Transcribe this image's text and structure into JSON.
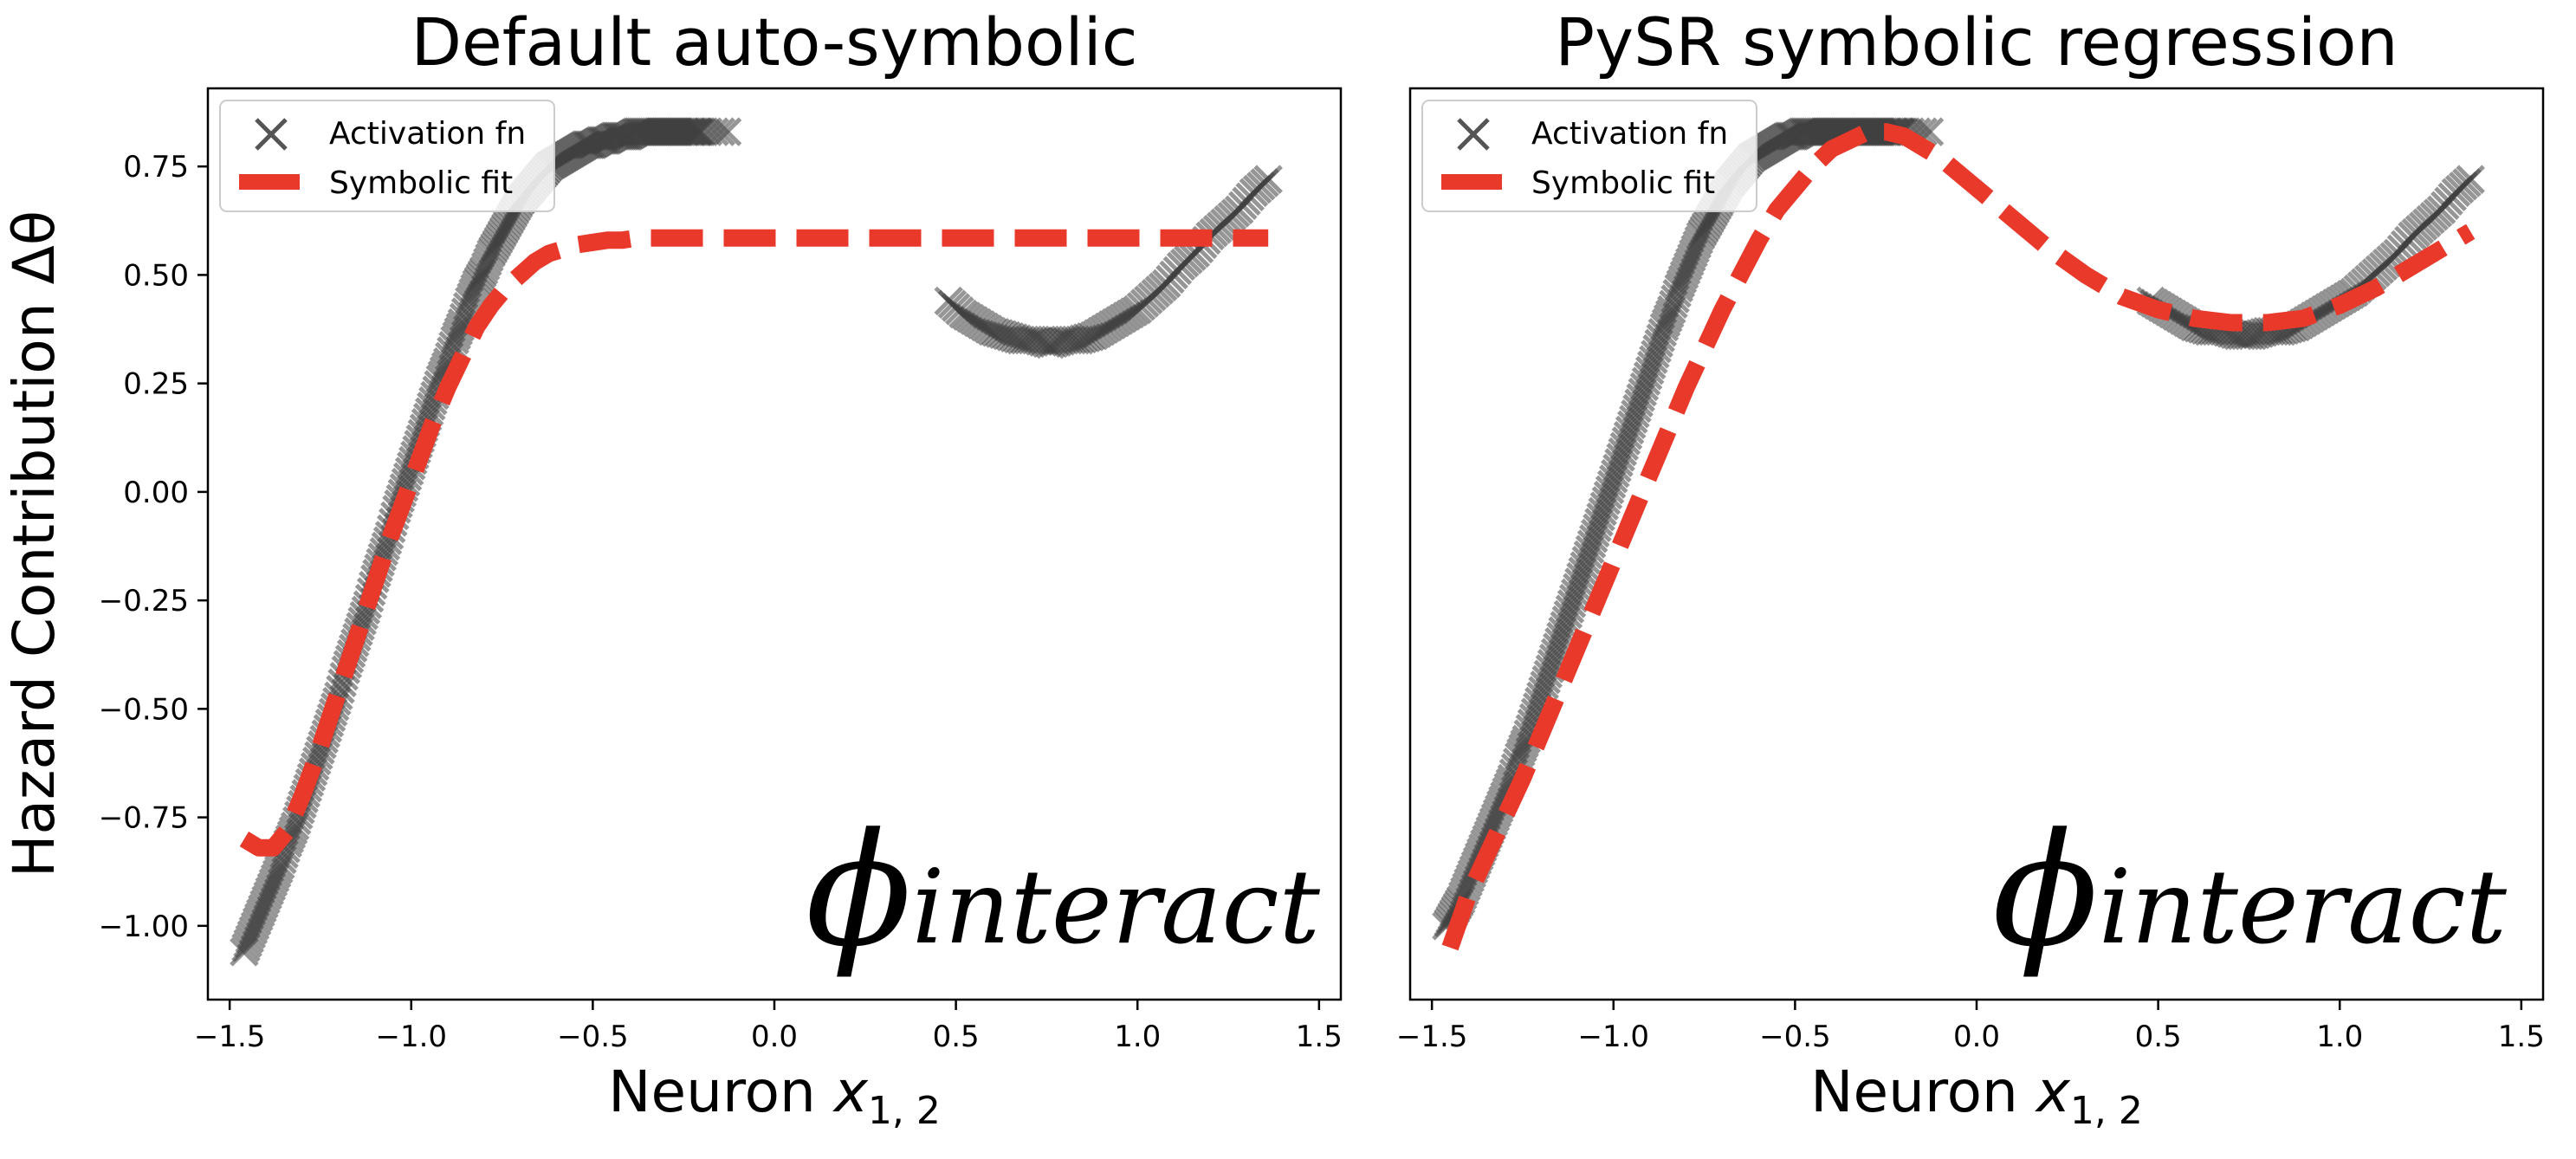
{
  "chart_data": [
    {
      "type": "line",
      "title": "Default auto-symbolic",
      "xlabel": "Neuron ",
      "xlabel_var": "x",
      "xlabel_sub": "1, 2",
      "ylabel": "Hazard Contribution Δθ",
      "xlim": [
        -1.56,
        1.56
      ],
      "ylim": [
        -1.17,
        0.93
      ],
      "xticks": [
        -1.5,
        -1.0,
        -0.5,
        0.0,
        0.5,
        1.0,
        1.5
      ],
      "xtick_labels": [
        "−1.5",
        "−1.0",
        "−0.5",
        "0.0",
        "0.5",
        "1.0",
        "1.5"
      ],
      "yticks": [
        -1.0,
        -0.75,
        -0.5,
        -0.25,
        0.0,
        0.25,
        0.5,
        0.75
      ],
      "ytick_labels": [
        "−1.00",
        "−0.75",
        "−0.50",
        "−0.25",
        "0.00",
        "0.25",
        "0.50",
        "0.75"
      ],
      "annotation_symbol": "ϕ",
      "annotation_sub": "interact",
      "legend": {
        "placement": "top-left",
        "entries": [
          "Activation fn",
          "Symbolic fit"
        ]
      },
      "series": [
        {
          "name": "Activation fn",
          "style": "marker-x",
          "color": "#404040",
          "segments": [
            {
              "x": [
                -1.46,
                -1.44,
                -1.42,
                -1.4,
                -1.38,
                -1.36,
                -1.34,
                -1.32,
                -1.3,
                -1.28,
                -1.26,
                -1.24,
                -1.22,
                -1.2,
                -1.18,
                -1.16,
                -1.14,
                -1.12,
                -1.1,
                -1.08,
                -1.06,
                -1.04,
                -1.02,
                -1.0,
                -0.98,
                -0.96,
                -0.94,
                -0.92,
                -0.9,
                -0.88,
                -0.86,
                -0.84,
                -0.82,
                -0.8,
                -0.78,
                -0.76,
                -0.74,
                -0.72,
                -0.7,
                -0.68,
                -0.66,
                -0.64,
                -0.62,
                -0.6,
                -0.58,
                -0.56,
                -0.54,
                -0.52,
                -0.5,
                -0.48,
                -0.46,
                -0.44,
                -0.42,
                -0.4,
                -0.38,
                -0.36,
                -0.34,
                -0.32,
                -0.3,
                -0.28,
                -0.26,
                -0.24,
                -0.22,
                -0.2,
                -0.13
              ],
              "y": [
                -1.06,
                -1.02,
                -0.98,
                -0.94,
                -0.9,
                -0.86,
                -0.81,
                -0.77,
                -0.72,
                -0.67,
                -0.62,
                -0.57,
                -0.52,
                -0.47,
                -0.41,
                -0.36,
                -0.31,
                -0.26,
                -0.2,
                -0.15,
                -0.1,
                -0.04,
                0.01,
                0.06,
                0.11,
                0.16,
                0.21,
                0.26,
                0.3,
                0.35,
                0.39,
                0.44,
                0.48,
                0.51,
                0.55,
                0.58,
                0.61,
                0.64,
                0.67,
                0.69,
                0.71,
                0.73,
                0.75,
                0.76,
                0.77,
                0.78,
                0.79,
                0.8,
                0.8,
                0.81,
                0.81,
                0.82,
                0.82,
                0.82,
                0.83,
                0.83,
                0.83,
                0.83,
                0.83,
                0.83,
                0.83,
                0.83,
                0.83,
                0.83,
                0.83
              ]
            },
            {
              "x": [
                0.48,
                0.52,
                0.56,
                0.6,
                0.64,
                0.68,
                0.72,
                0.76,
                0.8,
                0.84,
                0.88,
                0.92,
                0.96,
                1.0,
                1.04,
                1.08,
                1.12,
                1.16,
                1.2,
                1.24,
                1.28,
                1.32,
                1.36
              ],
              "y": [
                0.44,
                0.41,
                0.39,
                0.37,
                0.36,
                0.35,
                0.35,
                0.34,
                0.35,
                0.35,
                0.36,
                0.38,
                0.4,
                0.42,
                0.45,
                0.48,
                0.52,
                0.55,
                0.59,
                0.62,
                0.65,
                0.69,
                0.72
              ]
            }
          ]
        },
        {
          "name": "Symbolic fit",
          "style": "dashed",
          "color": "#e8392b",
          "segments": [
            {
              "x": [
                -1.46,
                -1.42,
                -1.38,
                -1.34,
                -1.3,
                -1.26,
                -1.22,
                -1.18,
                -1.14,
                -1.1,
                -1.06,
                -1.02,
                -0.98,
                -0.94,
                -0.9,
                -0.86,
                -0.82,
                -0.78,
                -0.74,
                -0.7,
                -0.66,
                -0.62,
                -0.58,
                -0.54,
                -0.5,
                -0.46,
                -0.42,
                -0.38,
                -0.34,
                -0.3,
                -0.2,
                -0.1,
                0.0,
                0.2,
                0.4,
                0.6,
                0.8,
                1.0,
                1.2,
                1.36
              ],
              "y": [
                -0.8,
                -0.82,
                -0.82,
                -0.78,
                -0.7,
                -0.61,
                -0.51,
                -0.41,
                -0.31,
                -0.21,
                -0.11,
                -0.02,
                0.07,
                0.16,
                0.24,
                0.31,
                0.38,
                0.43,
                0.47,
                0.5,
                0.53,
                0.55,
                0.56,
                0.57,
                0.575,
                0.58,
                0.58,
                0.585,
                0.585,
                0.585,
                0.585,
                0.585,
                0.585,
                0.585,
                0.585,
                0.585,
                0.585,
                0.585,
                0.585,
                0.585
              ]
            }
          ]
        }
      ]
    },
    {
      "type": "line",
      "title": "PySR symbolic regression",
      "xlabel": "Neuron ",
      "xlabel_var": "x",
      "xlabel_sub": "1, 2",
      "ylabel": "",
      "xlim": [
        -1.56,
        1.56
      ],
      "ylim": [
        -1.17,
        0.93
      ],
      "xticks": [
        -1.5,
        -1.0,
        -0.5,
        0.0,
        0.5,
        1.0,
        1.5
      ],
      "xtick_labels": [
        "−1.5",
        "−1.0",
        "−0.5",
        "0.0",
        "0.5",
        "1.0",
        "1.5"
      ],
      "yticks": [],
      "ytick_labels": [],
      "annotation_symbol": "ϕ",
      "annotation_sub": "interact",
      "legend": {
        "placement": "top-left",
        "entries": [
          "Activation fn",
          "Symbolic fit"
        ]
      },
      "series": [
        {
          "name": "Activation fn",
          "style": "marker-x",
          "color": "#404040",
          "segments": [
            {
              "x": [
                -1.46,
                -1.44,
                -1.42,
                -1.4,
                -1.38,
                -1.36,
                -1.34,
                -1.32,
                -1.3,
                -1.28,
                -1.26,
                -1.24,
                -1.22,
                -1.2,
                -1.18,
                -1.16,
                -1.14,
                -1.12,
                -1.1,
                -1.08,
                -1.06,
                -1.04,
                -1.02,
                -1.0,
                -0.98,
                -0.96,
                -0.94,
                -0.92,
                -0.9,
                -0.88,
                -0.86,
                -0.84,
                -0.82,
                -0.8,
                -0.78,
                -0.76,
                -0.74,
                -0.72,
                -0.7,
                -0.68,
                -0.66,
                -0.64,
                -0.62,
                -0.6,
                -0.58,
                -0.56,
                -0.54,
                -0.52,
                -0.5,
                -0.48,
                -0.46,
                -0.44,
                -0.42,
                -0.4,
                -0.38,
                -0.36,
                -0.34,
                -0.32,
                -0.3,
                -0.28,
                -0.26,
                -0.24,
                -0.22,
                -0.2,
                -0.13
              ],
              "y": [
                -1.0,
                -0.97,
                -0.94,
                -0.9,
                -0.86,
                -0.82,
                -0.78,
                -0.74,
                -0.7,
                -0.66,
                -0.61,
                -0.57,
                -0.52,
                -0.47,
                -0.42,
                -0.37,
                -0.32,
                -0.27,
                -0.22,
                -0.17,
                -0.12,
                -0.07,
                -0.02,
                0.03,
                0.08,
                0.13,
                0.18,
                0.23,
                0.28,
                0.33,
                0.38,
                0.42,
                0.47,
                0.51,
                0.55,
                0.59,
                0.62,
                0.65,
                0.68,
                0.71,
                0.73,
                0.75,
                0.77,
                0.78,
                0.79,
                0.8,
                0.81,
                0.82,
                0.82,
                0.83,
                0.83,
                0.83,
                0.83,
                0.83,
                0.83,
                0.83,
                0.83,
                0.83,
                0.83,
                0.83,
                0.83,
                0.83,
                0.83,
                0.83,
                0.83
              ]
            },
            {
              "x": [
                0.48,
                0.52,
                0.56,
                0.6,
                0.64,
                0.68,
                0.72,
                0.76,
                0.8,
                0.84,
                0.88,
                0.92,
                0.96,
                1.0,
                1.04,
                1.08,
                1.12,
                1.16,
                1.2,
                1.24,
                1.28,
                1.32,
                1.36
              ],
              "y": [
                0.44,
                0.42,
                0.4,
                0.38,
                0.37,
                0.37,
                0.36,
                0.36,
                0.37,
                0.37,
                0.38,
                0.4,
                0.42,
                0.44,
                0.46,
                0.49,
                0.52,
                0.55,
                0.59,
                0.62,
                0.65,
                0.69,
                0.72
              ]
            }
          ]
        },
        {
          "name": "Symbolic fit",
          "style": "dashed",
          "color": "#e8392b",
          "segments": [
            {
              "x": [
                -1.45,
                -1.4,
                -1.35,
                -1.3,
                -1.25,
                -1.2,
                -1.15,
                -1.1,
                -1.05,
                -1.0,
                -0.95,
                -0.9,
                -0.85,
                -0.8,
                -0.75,
                -0.7,
                -0.65,
                -0.6,
                -0.55,
                -0.5,
                -0.45,
                -0.4,
                -0.35,
                -0.3,
                -0.25,
                -0.2,
                -0.1,
                0.0,
                0.1,
                0.2,
                0.3,
                0.4,
                0.5,
                0.6,
                0.7,
                0.8,
                0.9,
                1.0,
                1.1,
                1.2,
                1.3,
                1.36
              ],
              "y": [
                -1.05,
                -0.93,
                -0.84,
                -0.75,
                -0.66,
                -0.56,
                -0.46,
                -0.36,
                -0.26,
                -0.16,
                -0.06,
                0.04,
                0.14,
                0.24,
                0.33,
                0.42,
                0.5,
                0.58,
                0.65,
                0.7,
                0.75,
                0.79,
                0.81,
                0.83,
                0.83,
                0.82,
                0.77,
                0.7,
                0.63,
                0.56,
                0.5,
                0.45,
                0.42,
                0.4,
                0.39,
                0.39,
                0.4,
                0.43,
                0.47,
                0.52,
                0.57,
                0.6
              ]
            }
          ]
        }
      ]
    }
  ]
}
